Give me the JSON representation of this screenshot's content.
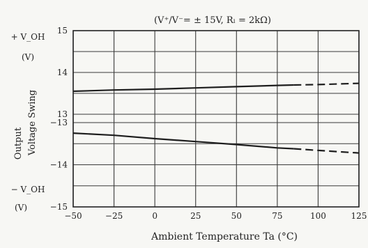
{
  "chart_data": {
    "type": "line",
    "title": "(V⁺/V⁻= ± 15V, Rₗ = 2kΩ)",
    "xlabel": "Ambient Temperature   Ta (°C)",
    "ylabel_line1": "Output",
    "ylabel_line2": "Voltage Swing",
    "y_upper_label_line1": "+ V_OH",
    "y_upper_label_line2": "(V)",
    "y_lower_label_line1": "− V_OH",
    "y_lower_label_line2": "(V)",
    "x_ticks": [
      "−50",
      "−25",
      "0",
      "25",
      "50",
      "75",
      "100",
      "125"
    ],
    "y_upper_ticks": [
      "15",
      "14",
      "13"
    ],
    "y_lower_ticks": [
      "−13",
      "−14",
      "−15"
    ],
    "xlim": [
      -50,
      125
    ],
    "grid": true,
    "series": [
      {
        "name": "",
        "panel": "positive",
        "x": [
          -50,
          -25,
          0,
          25,
          50,
          75,
          85,
          100,
          125
        ],
        "y": [
          13.55,
          13.58,
          13.6,
          13.63,
          13.66,
          13.69,
          13.7,
          13.71,
          13.74
        ],
        "dashed_from_x": 85
      },
      {
        "name": "",
        "panel": "negative",
        "x": [
          -50,
          -25,
          0,
          25,
          50,
          75,
          85,
          100,
          125
        ],
        "y": [
          -13.25,
          -13.3,
          -13.38,
          -13.45,
          -13.52,
          -13.6,
          -13.62,
          -13.66,
          -13.72
        ],
        "dashed_from_x": 85
      }
    ]
  }
}
